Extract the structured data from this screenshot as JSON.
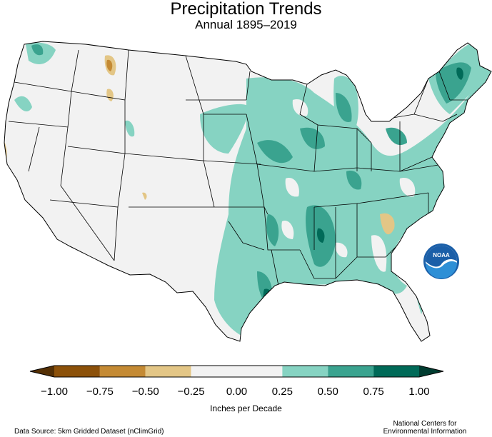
{
  "title": "Precipitation Trends",
  "subtitle": "Annual 1895–2019",
  "legend": {
    "title": "Inches per Decade",
    "ticks": [
      "−1.00",
      "−0.75",
      "−0.50",
      "−0.25",
      "0.00",
      "0.25",
      "0.50",
      "0.75",
      "1.00"
    ],
    "bins": [
      {
        "min": -1.0,
        "max": -0.75,
        "color": "#8c510a"
      },
      {
        "min": -0.75,
        "max": -0.5,
        "color": "#c48a34"
      },
      {
        "min": -0.5,
        "max": -0.25,
        "color": "#e3c686"
      },
      {
        "min": -0.25,
        "max": 0.0,
        "color": "#f2f2f2"
      },
      {
        "min": 0.0,
        "max": 0.25,
        "color": "#f2f2f2"
      },
      {
        "min": 0.25,
        "max": 0.5,
        "color": "#86d3c2"
      },
      {
        "min": 0.5,
        "max": 0.75,
        "color": "#3aa38f"
      },
      {
        "min": 0.75,
        "max": 1.0,
        "color": "#006a58"
      }
    ]
  },
  "source": "Data Source: 5km Gridded Dataset (nClimGrid)",
  "credit_line1": "National Centers for",
  "credit_line2": "Environmental Information",
  "logo_text": "NOAA"
}
